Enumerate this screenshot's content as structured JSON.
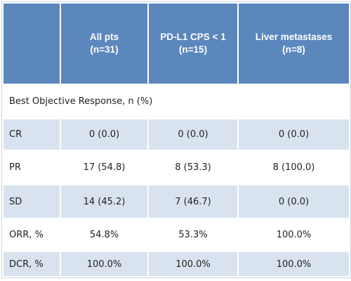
{
  "table": {
    "columns": [
      [
        "All pts",
        "(n=31)"
      ],
      [
        "PD-L1 CPS < 1",
        "(n=15)"
      ],
      [
        "Liver metastases",
        "(n=8)"
      ]
    ],
    "section": "Best Objective Response, n (%)",
    "rows": [
      [
        "CR",
        "0 (0.0)",
        "0 (0.0)",
        "0 (0.0)"
      ],
      [
        "PR",
        "17 (54.8)",
        "8 (53.3)",
        "8 (100.0)"
      ],
      [
        "SD",
        "14 (45.2)",
        "7 (46.7)",
        "0 (0.0)"
      ],
      [
        "ORR, %",
        "54.8%",
        "53.3%",
        "100.0%"
      ],
      [
        "DCR, %",
        "100.0%",
        "100.0%",
        "100.0%"
      ]
    ]
  }
}
